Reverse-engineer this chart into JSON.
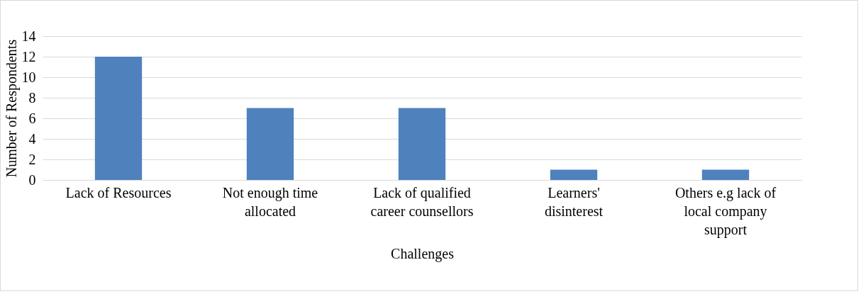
{
  "chart_data": {
    "type": "bar",
    "xlabel": "Challenges",
    "ylabel": "Number of Respondents",
    "categories": [
      "Lack of Resources",
      "Not enough time allocated",
      "Lack of qualified career counsellors",
      "Learners' disinterest",
      "Others e.g lack of local company support"
    ],
    "values": [
      12,
      7,
      7,
      1,
      1
    ],
    "color": "#4f81bd",
    "ylim": [
      0,
      14
    ],
    "yticks": [
      0,
      2,
      4,
      6,
      8,
      10,
      12,
      14
    ],
    "grid": "y"
  }
}
